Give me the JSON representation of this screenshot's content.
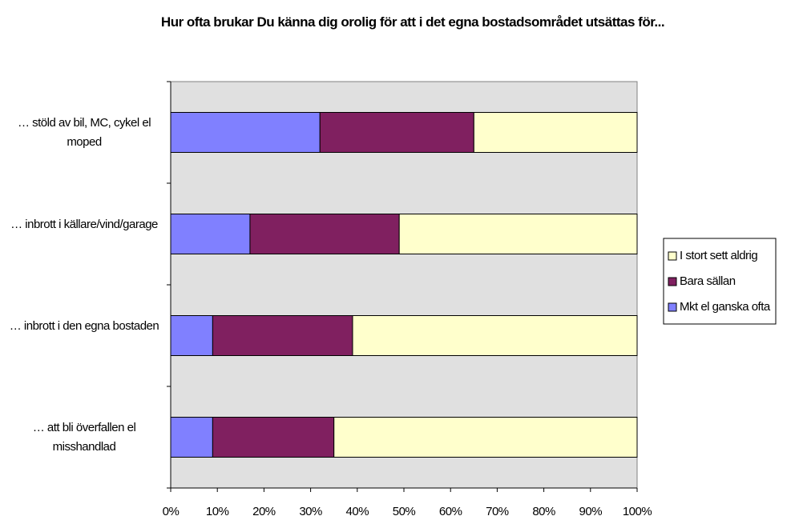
{
  "chart_data": {
    "type": "stacked_barh",
    "title": "Hur ofta brukar Du känna dig orolig för att i det egna bostadsområdet utsättas för...",
    "categories": [
      "… stöld av bil, MC, cykel el moped",
      "… inbrott i källare/vind/garage",
      "… inbrott i den egna bostaden",
      "… att bli överfallen el misshandlad"
    ],
    "series": [
      {
        "name": "Mkt el ganska ofta",
        "color": "#8080ff",
        "values": [
          32,
          17,
          9,
          9
        ]
      },
      {
        "name": "Bara sällan",
        "color": "#802060",
        "values": [
          33,
          32,
          30,
          26
        ]
      },
      {
        "name": "I stort sett aldrig",
        "color": "#ffffcc",
        "values": [
          35,
          51,
          61,
          65
        ]
      }
    ],
    "xlim": [
      0,
      100
    ],
    "xticks": [
      {
        "value": 0,
        "label": "0%"
      },
      {
        "value": 10,
        "label": "10%"
      },
      {
        "value": 20,
        "label": "20%"
      },
      {
        "value": 30,
        "label": "30%"
      },
      {
        "value": 40,
        "label": "40%"
      },
      {
        "value": 50,
        "label": "50%"
      },
      {
        "value": 60,
        "label": "60%"
      },
      {
        "value": 70,
        "label": "70%"
      },
      {
        "value": 80,
        "label": "80%"
      },
      {
        "value": 90,
        "label": "90%"
      },
      {
        "value": 100,
        "label": "100%"
      }
    ],
    "legend": "right"
  }
}
